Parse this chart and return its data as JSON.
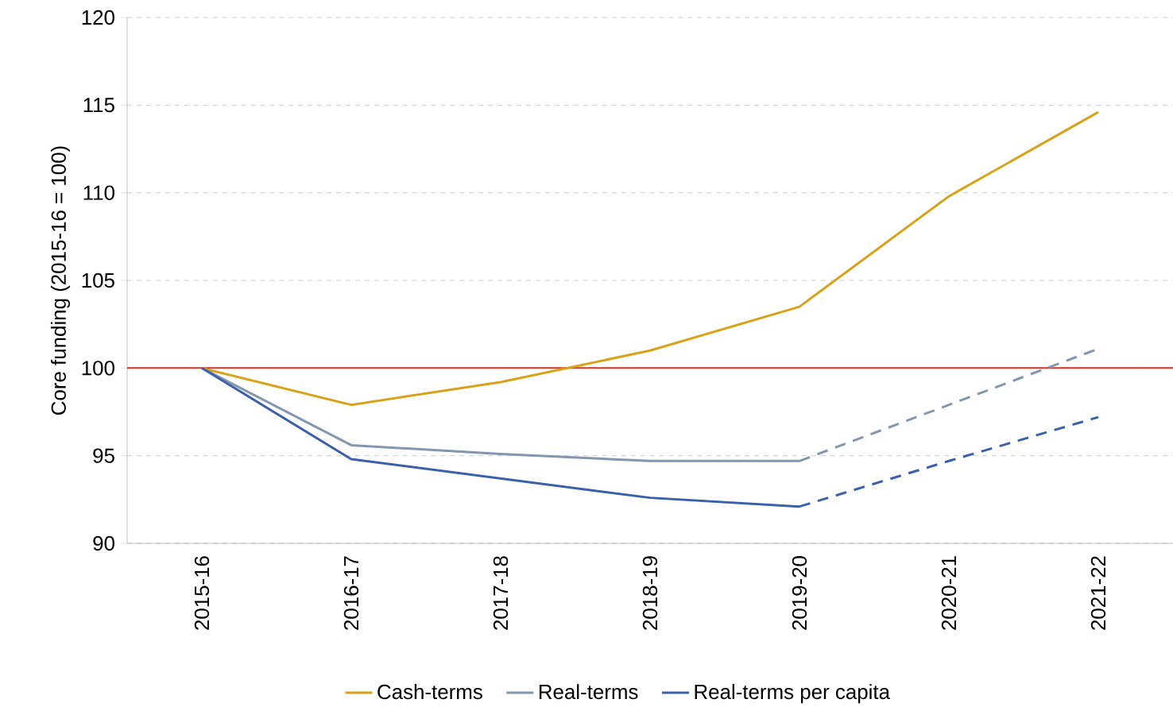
{
  "chart_data": {
    "type": "line",
    "ylabel": "Core funding (2015-16 = 100)",
    "categories": [
      "2015-16",
      "2016-17",
      "2017-18",
      "2018-19",
      "2019-20",
      "2020-21",
      "2021-22"
    ],
    "series": [
      {
        "name": "Cash-terms",
        "color": "#d8a21a",
        "values": [
          100,
          97.9,
          99.2,
          101.0,
          103.5,
          109.8,
          114.6
        ]
      },
      {
        "name": "Real-terms",
        "color": "#8497b0",
        "values": [
          100,
          95.6,
          95.1,
          94.7,
          94.7,
          null,
          null
        ]
      },
      {
        "name": "Real-terms per capita",
        "color": "#3a5fab",
        "values": [
          100,
          94.8,
          93.7,
          92.6,
          92.1,
          null,
          null
        ]
      },
      {
        "color": "#8497b0",
        "line_style": "dashed",
        "values": [
          null,
          null,
          null,
          null,
          94.7,
          97.9,
          101.1
        ]
      },
      {
        "color": "#3a5fab",
        "line_style": "dashed",
        "values": [
          null,
          null,
          null,
          null,
          92.1,
          94.7,
          97.2
        ]
      }
    ],
    "ylim": [
      90,
      120
    ],
    "yticks": [
      90,
      95,
      100,
      105,
      110,
      115,
      120
    ],
    "ref_lines": [
      {
        "axis": "y",
        "value": 100,
        "color": "#e0301e"
      }
    ],
    "grid": "y",
    "legend": "bottom",
    "marker": "none",
    "line_style": "solid"
  }
}
